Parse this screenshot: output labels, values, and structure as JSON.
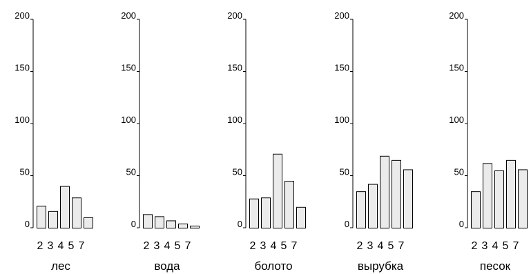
{
  "chart_data": [
    {
      "type": "bar",
      "title": "лес",
      "categories": [
        "2",
        "3",
        "4",
        "5",
        "7"
      ],
      "values": [
        21,
        16,
        40,
        29,
        10
      ],
      "ylim": [
        0,
        200
      ],
      "yticks": [
        "0",
        "50",
        "100",
        "150",
        "200"
      ]
    },
    {
      "type": "bar",
      "title": "вода",
      "categories": [
        "2",
        "3",
        "4",
        "5",
        "7"
      ],
      "values": [
        13,
        11,
        7,
        4,
        2
      ],
      "ylim": [
        0,
        200
      ],
      "yticks": [
        "0",
        "50",
        "100",
        "150",
        "200"
      ]
    },
    {
      "type": "bar",
      "title": "болото",
      "categories": [
        "2",
        "3",
        "4",
        "5",
        "7"
      ],
      "values": [
        28,
        29,
        71,
        45,
        20
      ],
      "ylim": [
        0,
        200
      ],
      "yticks": [
        "0",
        "50",
        "100",
        "150",
        "200"
      ]
    },
    {
      "type": "bar",
      "title": "вырубка",
      "categories": [
        "2",
        "3",
        "4",
        "5",
        "7"
      ],
      "values": [
        35,
        42,
        69,
        65,
        56
      ],
      "ylim": [
        0,
        200
      ],
      "yticks": [
        "0",
        "50",
        "100",
        "150",
        "200"
      ]
    },
    {
      "type": "bar",
      "title": "песок",
      "categories": [
        "2",
        "3",
        "4",
        "5",
        "7"
      ],
      "values": [
        35,
        62,
        55,
        65,
        56
      ],
      "ylim": [
        0,
        200
      ],
      "yticks": [
        "0",
        "50",
        "100",
        "150",
        "200"
      ]
    }
  ]
}
